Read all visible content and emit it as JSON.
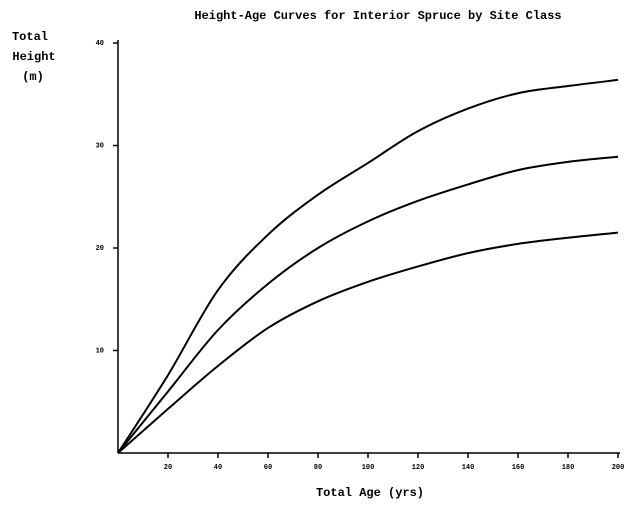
{
  "chart_data": {
    "type": "line",
    "title": "Height-Age Curves for Interior Spruce by Site Class",
    "y_label": [
      "Total",
      "Height",
      "(m)"
    ],
    "x_label": "Total Age (yrs)",
    "x": [
      0,
      20,
      40,
      60,
      80,
      100,
      120,
      140,
      160,
      180,
      200
    ],
    "series": [
      {
        "color": "#000000",
        "values": [
          0,
          7.6,
          15.9,
          21.3,
          25.2,
          28.3,
          31.4,
          33.6,
          35.1,
          35.8,
          36.4
        ]
      },
      {
        "color": "#000000",
        "values": [
          0,
          6,
          12,
          16.5,
          20,
          22.6,
          24.6,
          26.2,
          27.6,
          28.4,
          28.9
        ]
      },
      {
        "color": "#000000",
        "values": [
          0,
          4.3,
          8.5,
          12.2,
          14.8,
          16.7,
          18.2,
          19.5,
          20.4,
          21,
          21.5
        ]
      }
    ],
    "xlim": [
      0,
      200
    ],
    "xticks": [
      20,
      40,
      60,
      80,
      100,
      120,
      140,
      160,
      180,
      200
    ],
    "ylim": [
      0,
      40
    ],
    "yticks": [
      10,
      20,
      30,
      40
    ],
    "grid": false
  }
}
